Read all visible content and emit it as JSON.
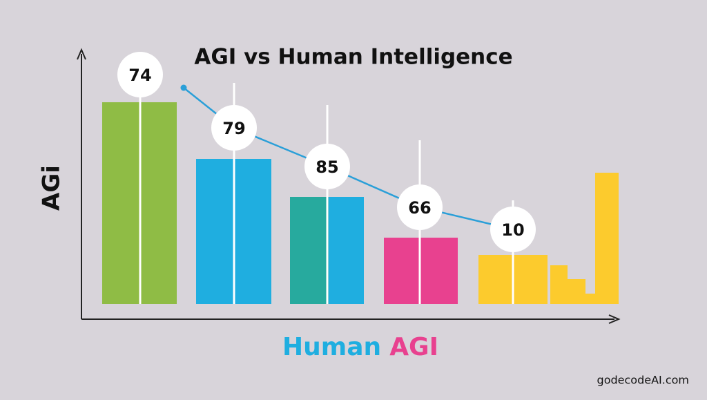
{
  "title": "AGI vs Human Intelligence",
  "y_label": "AGi",
  "x_label": {
    "first": "Human",
    "second": "AGI"
  },
  "badges": [
    "74",
    "79",
    "85",
    "66",
    "10"
  ],
  "watermark": "godecodeAI.com"
}
